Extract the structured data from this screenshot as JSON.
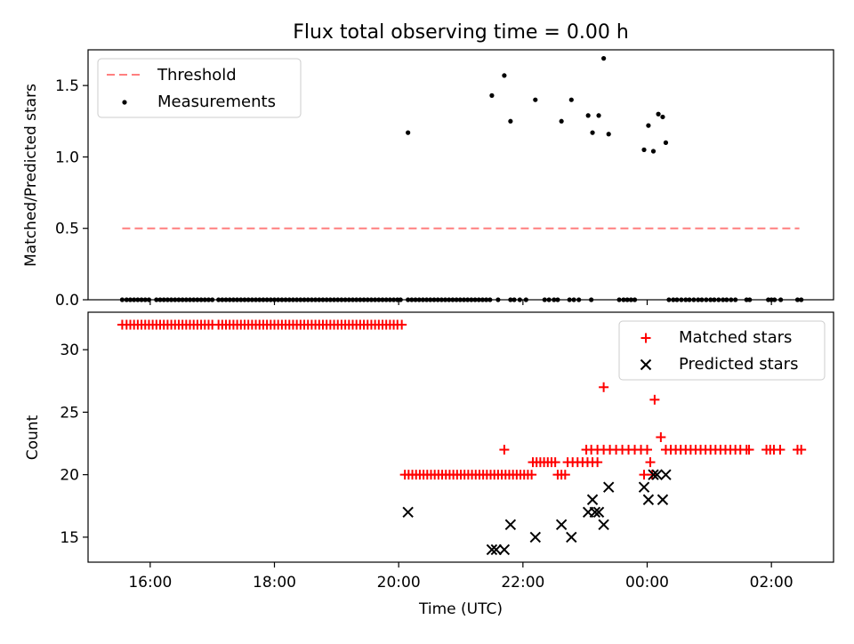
{
  "title": "Flux total observing time = 0.00 h",
  "colors": {
    "matched": "#ff0000",
    "predicted": "#000000",
    "threshold": "#ff7f7f",
    "measurement": "#000000"
  },
  "chart_data": [
    {
      "type": "scatter",
      "ylabel": "Matched/Predicted stars",
      "xlabel": "",
      "xlim": [
        15.0,
        27.0
      ],
      "ylim": [
        0.0,
        1.75
      ],
      "y_ticks": [
        0.0,
        0.5,
        1.0,
        1.5
      ],
      "y_tick_labels": [
        "0.0",
        "0.5",
        "1.0",
        "1.5"
      ],
      "legend": {
        "position": "top-left",
        "entries": [
          {
            "label": "Threshold",
            "marker": "dashed-line"
          },
          {
            "label": "Measurements",
            "marker": "dot"
          }
        ]
      },
      "threshold": {
        "x": [
          15.55,
          26.45
        ],
        "y": 0.5
      },
      "series": [
        {
          "name": "Measurements",
          "zero_points_x": [
            15.55,
            15.62,
            15.68,
            15.74,
            15.8,
            15.86,
            15.92,
            15.98,
            16.1,
            16.16,
            16.22,
            16.28,
            16.34,
            16.4,
            16.46,
            16.52,
            16.58,
            16.64,
            16.7,
            16.76,
            16.82,
            16.88,
            16.94,
            17.0,
            17.1,
            17.16,
            17.22,
            17.28,
            17.34,
            17.4,
            17.46,
            17.52,
            17.58,
            17.64,
            17.7,
            17.76,
            17.82,
            17.88,
            17.94,
            18.0,
            18.06,
            18.12,
            18.18,
            18.24,
            18.3,
            18.36,
            18.42,
            18.48,
            18.54,
            18.6,
            18.66,
            18.72,
            18.78,
            18.84,
            18.9,
            18.96,
            19.02,
            19.08,
            19.14,
            19.2,
            19.26,
            19.32,
            19.38,
            19.44,
            19.5,
            19.56,
            19.62,
            19.68,
            19.74,
            19.8,
            19.86,
            19.92,
            19.98,
            20.03,
            20.15,
            20.21,
            20.27,
            20.33,
            20.39,
            20.45,
            20.51,
            20.57,
            20.63,
            20.69,
            20.75,
            20.81,
            20.87,
            20.93,
            20.99,
            21.05,
            21.11,
            21.17,
            21.23,
            21.29,
            21.35,
            21.41,
            21.47,
            21.6,
            21.8,
            21.86,
            21.95,
            22.05,
            22.35,
            22.42,
            22.5,
            22.56,
            22.75,
            22.82,
            22.9,
            23.1,
            23.55,
            23.62,
            23.68,
            23.74,
            23.8,
            24.35,
            24.42,
            24.48,
            24.55,
            24.62,
            24.68,
            24.75,
            24.82,
            24.88,
            24.95,
            25.02,
            25.08,
            25.15,
            25.22,
            25.28,
            25.35,
            25.42,
            25.6,
            25.65,
            25.95,
            26.0,
            26.05,
            26.15,
            26.42,
            26.48
          ],
          "points": [
            {
              "x": 20.15,
              "y": 1.17
            },
            {
              "x": 21.5,
              "y": 1.43
            },
            {
              "x": 21.7,
              "y": 1.57
            },
            {
              "x": 21.8,
              "y": 1.25
            },
            {
              "x": 22.2,
              "y": 1.4
            },
            {
              "x": 22.62,
              "y": 1.25
            },
            {
              "x": 22.78,
              "y": 1.4
            },
            {
              "x": 23.05,
              "y": 1.29
            },
            {
              "x": 23.12,
              "y": 1.17
            },
            {
              "x": 23.22,
              "y": 1.29
            },
            {
              "x": 23.3,
              "y": 1.69
            },
            {
              "x": 23.38,
              "y": 1.16
            },
            {
              "x": 23.95,
              "y": 1.05
            },
            {
              "x": 24.02,
              "y": 1.22
            },
            {
              "x": 24.1,
              "y": 1.04
            },
            {
              "x": 24.18,
              "y": 1.3
            },
            {
              "x": 24.25,
              "y": 1.28
            },
            {
              "x": 24.3,
              "y": 1.1
            }
          ]
        }
      ]
    },
    {
      "type": "scatter",
      "xlabel": "Time (UTC)",
      "ylabel": "Count",
      "xlim": [
        15.0,
        27.0
      ],
      "ylim": [
        13.0,
        33.0
      ],
      "x_ticks": [
        16,
        18,
        20,
        22,
        24,
        26
      ],
      "x_tick_labels": [
        "16:00",
        "18:00",
        "20:00",
        "22:00",
        "00:00",
        "02:00"
      ],
      "y_ticks": [
        15,
        20,
        25,
        30
      ],
      "y_tick_labels": [
        "15",
        "20",
        "25",
        "30"
      ],
      "legend": {
        "position": "top-right",
        "entries": [
          {
            "label": "Matched stars",
            "marker": "plus"
          },
          {
            "label": "Predicted stars",
            "marker": "x"
          }
        ]
      },
      "series": [
        {
          "name": "Matched stars",
          "groups": [
            {
              "y": 32,
              "x": [
                15.55,
                15.62,
                15.68,
                15.74,
                15.8,
                15.86,
                15.92,
                15.98,
                16.04,
                16.1,
                16.16,
                16.22,
                16.28,
                16.34,
                16.4,
                16.46,
                16.52,
                16.58,
                16.64,
                16.7,
                16.76,
                16.82,
                16.88,
                16.94,
                17.0,
                17.1,
                17.16,
                17.22,
                17.28,
                17.34,
                17.4,
                17.46,
                17.52,
                17.58,
                17.64,
                17.7,
                17.76,
                17.82,
                17.88,
                17.94,
                18.0,
                18.06,
                18.12,
                18.18,
                18.24,
                18.3,
                18.36,
                18.42,
                18.48,
                18.54,
                18.6,
                18.66,
                18.72,
                18.78,
                18.84,
                18.9,
                18.96,
                19.02,
                19.08,
                19.14,
                19.2,
                19.26,
                19.32,
                19.38,
                19.44,
                19.5,
                19.56,
                19.62,
                19.68,
                19.74,
                19.8,
                19.86,
                19.92,
                19.98,
                20.05
              ]
            },
            {
              "y": 20,
              "x": [
                20.1,
                20.16,
                20.22,
                20.28,
                20.34,
                20.4,
                20.46,
                20.52,
                20.58,
                20.64,
                20.7,
                20.76,
                20.82,
                20.88,
                20.94,
                21.0,
                21.06,
                21.12,
                21.18,
                21.24,
                21.3,
                21.36,
                21.42,
                21.48,
                21.54,
                21.6,
                21.66,
                21.72,
                21.78,
                21.84,
                21.9,
                21.96,
                22.02,
                22.08,
                22.14,
                22.56,
                22.62,
                22.68
              ]
            },
            {
              "y": 21,
              "x": [
                22.16,
                22.22,
                22.28,
                22.34,
                22.4,
                22.46,
                22.52,
                22.72,
                22.8,
                22.88,
                22.96,
                23.04,
                23.12,
                23.2,
                24.05
              ]
            },
            {
              "y": 22,
              "x": [
                21.7,
                23.02,
                23.1,
                23.2,
                23.3,
                23.4,
                23.5,
                23.6,
                23.7,
                23.8,
                23.9,
                24.0,
                24.3,
                24.38,
                24.46,
                24.54,
                24.62,
                24.7,
                24.78,
                24.86,
                24.94,
                25.02,
                25.1,
                25.18,
                25.26,
                25.34,
                25.42,
                25.5,
                25.6,
                25.64,
                25.92,
                25.98,
                26.04,
                26.14,
                26.42,
                26.48
              ]
            },
            {
              "y": 27,
              "x": [
                23.3
              ]
            },
            {
              "y": 26,
              "x": [
                24.12
              ]
            },
            {
              "y": 23,
              "x": [
                24.22
              ]
            },
            {
              "y": 20,
              "x": [
                23.95,
                24.08
              ]
            }
          ]
        },
        {
          "name": "Predicted stars",
          "points": [
            {
              "x": 20.15,
              "y": 17
            },
            {
              "x": 21.5,
              "y": 14
            },
            {
              "x": 21.57,
              "y": 14
            },
            {
              "x": 21.7,
              "y": 14
            },
            {
              "x": 21.8,
              "y": 16
            },
            {
              "x": 22.2,
              "y": 15
            },
            {
              "x": 22.62,
              "y": 16
            },
            {
              "x": 22.78,
              "y": 15
            },
            {
              "x": 23.05,
              "y": 17
            },
            {
              "x": 23.12,
              "y": 18
            },
            {
              "x": 23.16,
              "y": 17
            },
            {
              "x": 23.22,
              "y": 17
            },
            {
              "x": 23.3,
              "y": 16
            },
            {
              "x": 23.38,
              "y": 19
            },
            {
              "x": 23.95,
              "y": 19
            },
            {
              "x": 24.02,
              "y": 18
            },
            {
              "x": 24.1,
              "y": 20
            },
            {
              "x": 24.16,
              "y": 20
            },
            {
              "x": 24.25,
              "y": 18
            },
            {
              "x": 24.3,
              "y": 20
            }
          ]
        }
      ]
    }
  ]
}
